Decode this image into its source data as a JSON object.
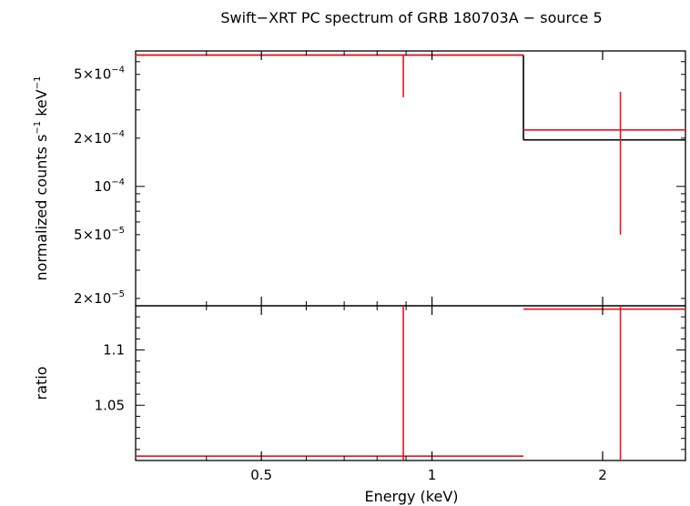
{
  "chart_data": {
    "type": "scatter",
    "title": "Swift−XRT PC spectrum of GRB 180703A − source 5",
    "xlabel": "Energy (keV)",
    "x_scale": "log",
    "xlim": [
      0.3,
      2.8
    ],
    "x_ticks": [
      {
        "value": 0.5,
        "label": "0.5"
      },
      {
        "value": 1,
        "label": "1"
      },
      {
        "value": 2,
        "label": "2"
      }
    ],
    "panels": [
      {
        "name": "spectrum",
        "ylabel_main": "normalized counts s",
        "ylabel_sup1": "−1",
        "ylabel_mid": " keV",
        "ylabel_sup2": "−1",
        "y_scale": "log",
        "ylim": [
          1.8e-05,
          0.0007
        ],
        "y_ticks": [
          {
            "value": 0.0005,
            "mantissa": "5×10",
            "exponent": "−4"
          },
          {
            "value": 0.0002,
            "mantissa": "2×10",
            "exponent": "−4"
          },
          {
            "value": 0.0001,
            "mantissa": "10",
            "exponent": "−4"
          },
          {
            "value": 5e-05,
            "mantissa": "5×10",
            "exponent": "−5"
          },
          {
            "value": 2e-05,
            "mantissa": "2×10",
            "exponent": "−5"
          }
        ],
        "data": {
          "color": "#e8141c",
          "points": [
            {
              "x_lo": 0.3,
              "x_hi": 1.45,
              "x": 0.89,
              "y": 0.00066,
              "y_lo": 0.00036,
              "y_hi": 0.00066
            },
            {
              "x_lo": 1.45,
              "x_hi": 2.8,
              "x": 2.15,
              "y": 0.000225,
              "y_lo": 5e-05,
              "y_hi": 0.00039
            }
          ]
        },
        "model": {
          "color": "#000000",
          "steps": [
            {
              "x_lo": 0.3,
              "x_hi": 1.45,
              "y": 0.00066
            },
            {
              "x_lo": 1.45,
              "x_hi": 2.8,
              "y": 0.000195
            }
          ]
        }
      },
      {
        "name": "ratio",
        "ylabel": "ratio",
        "y_scale": "linear",
        "ylim": [
          1.0,
          1.14
        ],
        "y_ticks": [
          {
            "value": 1.1,
            "label": "1.1"
          },
          {
            "value": 1.05,
            "label": "1.05"
          }
        ],
        "data": {
          "color": "#e8141c",
          "points": [
            {
              "x_lo": 0.3,
              "x_hi": 1.45,
              "x": 0.89,
              "y": 1.004,
              "y_lo": 1.0,
              "y_hi": 1.14
            },
            {
              "x_lo": 1.45,
              "x_hi": 2.8,
              "x": 2.15,
              "y": 1.137,
              "y_lo": 1.0,
              "y_hi": 1.14
            }
          ]
        }
      }
    ],
    "grid": false,
    "legend": "none"
  }
}
